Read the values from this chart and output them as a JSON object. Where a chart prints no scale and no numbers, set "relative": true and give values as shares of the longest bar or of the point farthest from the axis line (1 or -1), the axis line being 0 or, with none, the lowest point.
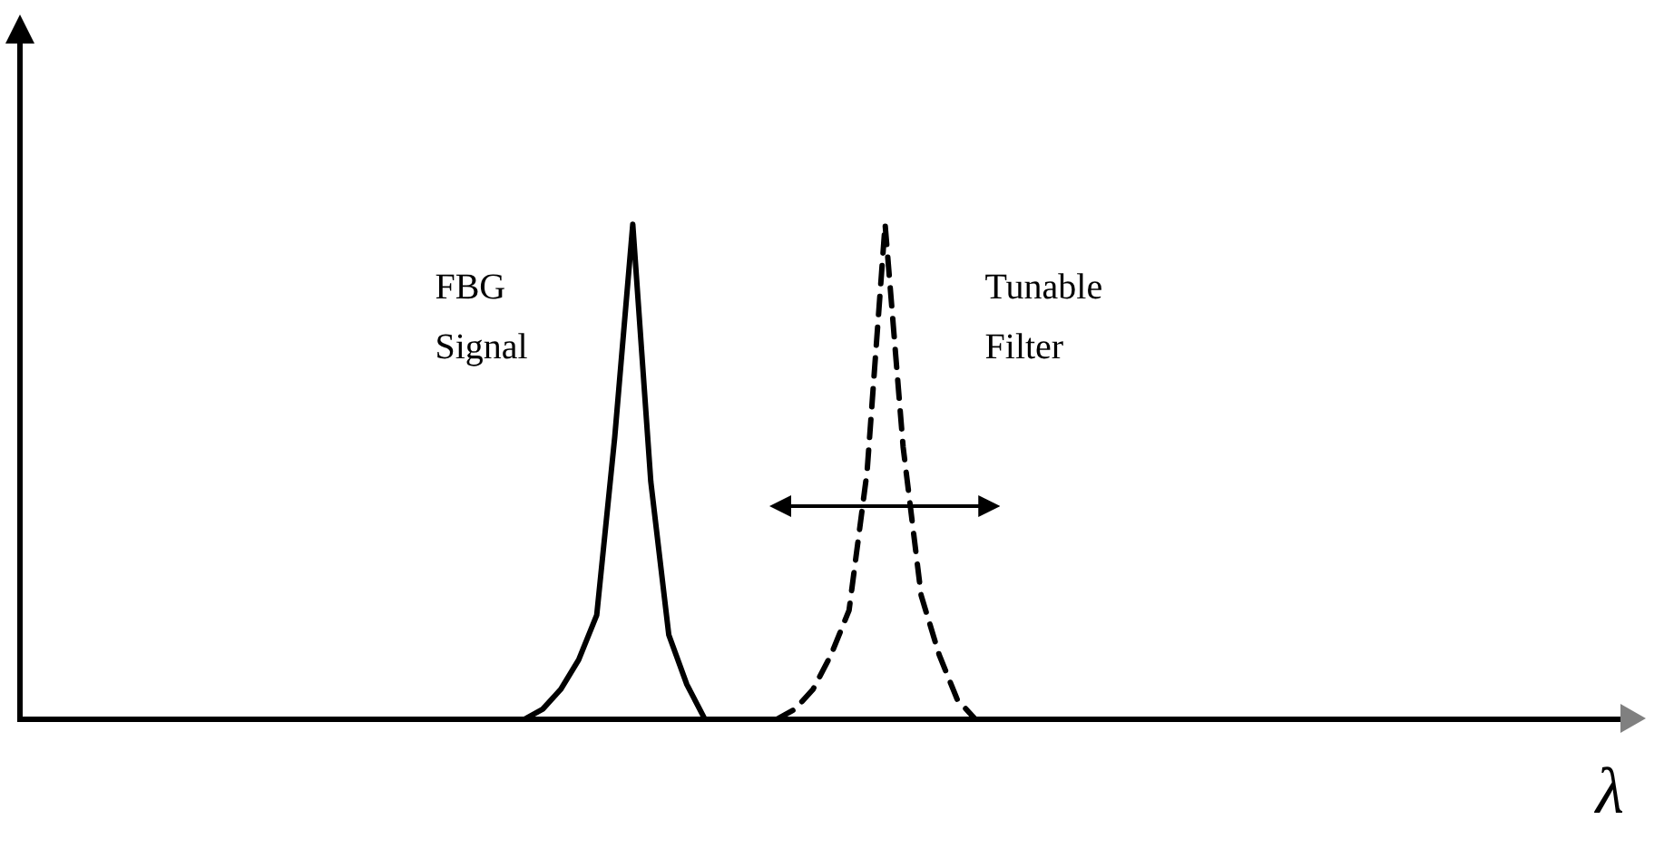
{
  "chart_data": {
    "type": "line",
    "relative": true,
    "xlabel": "λ",
    "legend": false,
    "grid": false,
    "marker": "none",
    "categories": [
      null,
      null,
      null,
      null,
      null,
      null,
      null,
      null,
      null,
      null,
      null,
      null,
      null,
      null,
      null,
      null,
      null,
      null,
      null,
      null,
      null,
      null,
      null,
      null,
      null,
      null,
      null,
      null,
      null,
      null,
      null,
      null,
      null,
      null,
      null,
      null,
      null,
      null,
      null,
      null,
      null,
      null,
      null,
      null,
      null,
      null,
      null,
      null,
      null,
      null,
      null,
      null,
      null,
      null,
      null,
      null,
      null,
      null,
      null,
      null,
      null,
      null,
      null,
      null,
      null,
      null,
      null,
      null,
      null,
      null,
      null,
      null,
      null,
      null,
      null,
      null,
      null,
      null,
      null,
      null,
      null,
      null,
      null,
      null,
      null,
      null,
      null,
      null,
      null,
      null
    ],
    "series": [
      {
        "name": "FBG Signal",
        "color": "#000000",
        "line_style": "solid",
        "values": [
          null,
          null,
          null,
          null,
          null,
          null,
          null,
          null,
          null,
          null,
          null,
          null,
          null,
          null,
          null,
          null,
          null,
          null,
          null,
          null,
          null,
          null,
          null,
          null,
          null,
          null,
          null,
          null,
          0,
          0.02,
          0.06,
          0.12,
          0.21,
          0.57,
          1,
          0.48,
          0.17,
          0.07,
          0,
          null,
          null,
          null,
          null,
          null,
          null,
          null,
          null,
          null,
          null,
          null,
          null,
          null,
          null,
          null,
          null,
          null,
          null,
          null,
          null,
          null,
          null,
          null,
          null,
          null,
          null,
          null,
          null,
          null,
          null,
          null,
          null,
          null,
          null,
          null,
          null,
          null,
          null,
          null,
          null,
          null,
          null,
          null,
          null,
          null,
          null,
          null,
          null,
          null,
          null,
          null
        ]
      },
      {
        "name": "Tunable Filter",
        "color": "#000000",
        "line_style": "dashed",
        "values": [
          null,
          null,
          null,
          null,
          null,
          null,
          null,
          null,
          null,
          null,
          null,
          null,
          null,
          null,
          null,
          null,
          null,
          null,
          null,
          null,
          null,
          null,
          null,
          null,
          null,
          null,
          null,
          null,
          null,
          null,
          null,
          null,
          null,
          null,
          null,
          null,
          null,
          null,
          null,
          null,
          null,
          null,
          0,
          0.02,
          0.06,
          0.13,
          0.22,
          0.5,
          1,
          0.55,
          0.25,
          0.13,
          0.04,
          0,
          null,
          null,
          null,
          null,
          null,
          null,
          null,
          null,
          null,
          null,
          null,
          null,
          null,
          null,
          null,
          null,
          null,
          null,
          null,
          null,
          null,
          null,
          null,
          null,
          null,
          null,
          null,
          null,
          null,
          null,
          null,
          null,
          null,
          null,
          null,
          null
        ]
      }
    ]
  }
}
